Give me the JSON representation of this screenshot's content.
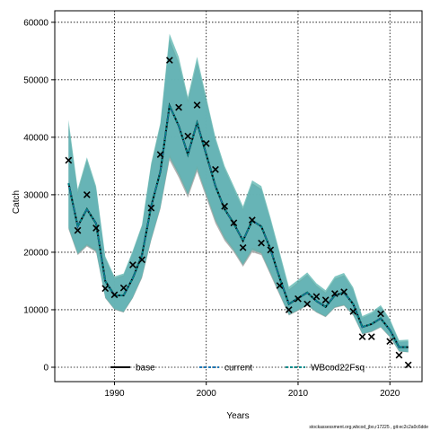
{
  "chart_data": {
    "type": "line",
    "title": "",
    "xlabel": "Years",
    "ylabel": "Catch",
    "xlim": [
      1983.5,
      2023.5
    ],
    "ylim": [
      -2500,
      62000
    ],
    "xticks": [
      1990,
      2000,
      2010,
      2020
    ],
    "yticks": [
      0,
      10000,
      20000,
      30000,
      40000,
      50000,
      60000
    ],
    "grid": true,
    "legend_position": "bottom",
    "footnote": "stockassessment.org,wbcod_jbo,r17225 , git:ec2c2a0c6dde",
    "x": [
      1985,
      1986,
      1987,
      1988,
      1989,
      1990,
      1991,
      1992,
      1993,
      1994,
      1995,
      1996,
      1997,
      1998,
      1999,
      2000,
      2001,
      2002,
      2003,
      2004,
      2005,
      2006,
      2007,
      2008,
      2009,
      2010,
      2011,
      2012,
      2013,
      2014,
      2015,
      2016,
      2017,
      2018,
      2019,
      2020,
      2021,
      2022
    ],
    "observed": {
      "name": "",
      "marker": "x",
      "values": [
        36000,
        23800,
        30000,
        24200,
        13700,
        12600,
        13800,
        17800,
        18700,
        27700,
        37000,
        53400,
        45200,
        40200,
        45600,
        38900,
        34400,
        28000,
        25100,
        20800,
        25600,
        21600,
        20400,
        14200,
        10000,
        11900,
        11000,
        12300,
        11700,
        12800,
        13100,
        9700,
        5300,
        5300,
        9300,
        4500,
        2100,
        400
      ]
    },
    "series": [
      {
        "name": "base",
        "color": "#000000",
        "dash": "solid",
        "values": [
          32000,
          24500,
          27500,
          25000,
          15000,
          12500,
          12500,
          15500,
          19500,
          28000,
          34000,
          45500,
          42000,
          37000,
          42500,
          37000,
          31500,
          27500,
          25000,
          22000,
          25500,
          24500,
          20500,
          15500,
          11000,
          12000,
          13000,
          11500,
          10500,
          12500,
          13000,
          11000,
          7000,
          7500,
          8500,
          6500,
          3500,
          3500
        ],
        "lower": [
          24000,
          19500,
          21000,
          20000,
          12000,
          10000,
          9500,
          12000,
          15500,
          22000,
          27500,
          36000,
          33000,
          29500,
          34000,
          29500,
          25000,
          22000,
          20000,
          17500,
          20000,
          19500,
          16000,
          12500,
          9000,
          9800,
          10700,
          9500,
          8700,
          10300,
          10700,
          9000,
          5700,
          6100,
          6900,
          5200,
          2700,
          2600
        ],
        "upper": [
          42000,
          30500,
          36000,
          31000,
          19000,
          15500,
          16000,
          20000,
          24500,
          35000,
          42000,
          57000,
          53000,
          46500,
          53000,
          46500,
          39500,
          34500,
          31000,
          27500,
          32000,
          31000,
          25500,
          19500,
          13500,
          14800,
          16100,
          14200,
          13000,
          15400,
          16000,
          13500,
          8600,
          9300,
          10500,
          8100,
          4400,
          4500
        ]
      },
      {
        "name": "current",
        "color": "#1f77b4",
        "dash": "dashed",
        "values": [
          32000,
          24500,
          27500,
          25000,
          15000,
          12500,
          12500,
          15500,
          19500,
          28000,
          34000,
          45500,
          42000,
          37000,
          42500,
          37000,
          31500,
          27500,
          25000,
          22000,
          25500,
          24500,
          20500,
          15500,
          11000,
          12000,
          13000,
          11500,
          10500,
          12500,
          13000,
          11000,
          7000,
          7500,
          8500,
          6500,
          3500,
          3500
        ],
        "lower": [
          24500,
          20000,
          21500,
          20500,
          12300,
          10200,
          9800,
          12300,
          16000,
          22500,
          28000,
          37000,
          34000,
          30500,
          35000,
          30500,
          26000,
          22800,
          20700,
          18200,
          20800,
          20200,
          16700,
          13000,
          9300,
          10100,
          11000,
          9800,
          9000,
          10600,
          11000,
          9300,
          5900,
          6300,
          7100,
          5400,
          2900,
          2700
        ],
        "upper": [
          41500,
          30000,
          35500,
          30800,
          18800,
          15300,
          15800,
          19800,
          24200,
          34500,
          41500,
          56500,
          52500,
          46000,
          52500,
          46000,
          39500,
          34200,
          30800,
          27300,
          31800,
          30800,
          25300,
          19300,
          13300,
          14600,
          15900,
          14000,
          12800,
          15200,
          15800,
          13300,
          8500,
          9200,
          10400,
          8000,
          4400,
          4400
        ]
      },
      {
        "name": "WBcod22Fsq",
        "color": "#008b8b",
        "dash": "dashed",
        "values": [
          32000,
          24500,
          27500,
          25000,
          15000,
          12500,
          12500,
          15500,
          19500,
          28000,
          34000,
          45500,
          42000,
          37000,
          42500,
          37000,
          31500,
          27500,
          25000,
          22000,
          25500,
          24500,
          20500,
          15500,
          11000,
          12000,
          13000,
          11500,
          10500,
          12500,
          13000,
          11000,
          7000,
          7500,
          8500,
          6500,
          3500,
          3500
        ],
        "lower": [
          24200,
          19700,
          21200,
          20200,
          12100,
          10100,
          9600,
          12100,
          15700,
          22200,
          27700,
          36500,
          33500,
          30000,
          34500,
          30000,
          25500,
          22400,
          20300,
          17800,
          20400,
          19800,
          16300,
          12700,
          9100,
          9900,
          10800,
          9600,
          8800,
          10400,
          10800,
          9100,
          5800,
          6200,
          7000,
          5300,
          2800,
          2600
        ],
        "upper": [
          43000,
          31000,
          36500,
          31500,
          19300,
          15800,
          16300,
          20300,
          24800,
          35500,
          42500,
          58000,
          54000,
          47000,
          54000,
          47000,
          40000,
          35000,
          31500,
          28000,
          32500,
          31500,
          26000,
          20000,
          14000,
          15200,
          16500,
          14600,
          13400,
          15800,
          16400,
          13900,
          8900,
          9600,
          10800,
          8400,
          4700,
          4800
        ]
      }
    ]
  }
}
